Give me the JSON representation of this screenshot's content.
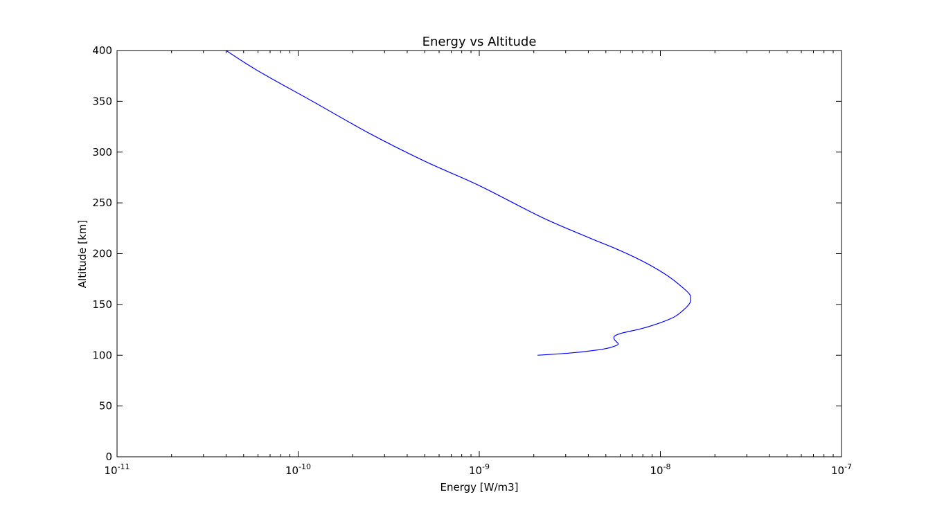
{
  "chart_data": {
    "type": "line",
    "title": "Energy vs Altitude",
    "xlabel": "Energy [W/m3]",
    "ylabel": "Altitude [km]",
    "x_scale": "log",
    "xlim": [
      1e-11,
      1e-07
    ],
    "ylim": [
      0,
      400
    ],
    "x_ticks": [
      {
        "value": 1e-11,
        "base": "10",
        "exponent": "-11"
      },
      {
        "value": 1e-10,
        "base": "10",
        "exponent": "-10"
      },
      {
        "value": 1e-09,
        "base": "10",
        "exponent": "-9"
      },
      {
        "value": 1e-08,
        "base": "10",
        "exponent": "-8"
      },
      {
        "value": 1e-07,
        "base": "10",
        "exponent": "-7"
      }
    ],
    "y_ticks": [
      {
        "value": 0,
        "label": "0"
      },
      {
        "value": 50,
        "label": "50"
      },
      {
        "value": 100,
        "label": "100"
      },
      {
        "value": 150,
        "label": "150"
      },
      {
        "value": 200,
        "label": "200"
      },
      {
        "value": 250,
        "label": "250"
      },
      {
        "value": 300,
        "label": "300"
      },
      {
        "value": 350,
        "label": "350"
      },
      {
        "value": 400,
        "label": "400"
      }
    ],
    "grid": false,
    "series": [
      {
        "color": "#0000ff",
        "points": [
          {
            "x": 2.1e-09,
            "y": 100
          },
          {
            "x": 3.1e-09,
            "y": 102
          },
          {
            "x": 4e-09,
            "y": 104
          },
          {
            "x": 5e-09,
            "y": 106.5
          },
          {
            "x": 5.6e-09,
            "y": 109
          },
          {
            "x": 5.85e-09,
            "y": 111
          },
          {
            "x": 5.7e-09,
            "y": 113.5
          },
          {
            "x": 5.55e-09,
            "y": 116
          },
          {
            "x": 5.6e-09,
            "y": 119
          },
          {
            "x": 6.2e-09,
            "y": 122
          },
          {
            "x": 7.8e-09,
            "y": 126
          },
          {
            "x": 1e-08,
            "y": 132
          },
          {
            "x": 1.2e-08,
            "y": 138
          },
          {
            "x": 1.35e-08,
            "y": 145
          },
          {
            "x": 1.45e-08,
            "y": 151
          },
          {
            "x": 1.47e-08,
            "y": 155
          },
          {
            "x": 1.45e-08,
            "y": 160
          },
          {
            "x": 1.32e-08,
            "y": 167
          },
          {
            "x": 1.1e-08,
            "y": 178
          },
          {
            "x": 8.5e-09,
            "y": 190
          },
          {
            "x": 6e-09,
            "y": 203
          },
          {
            "x": 4e-09,
            "y": 216
          },
          {
            "x": 2.2e-09,
            "y": 236
          },
          {
            "x": 1e-09,
            "y": 267
          },
          {
            "x": 5e-10,
            "y": 291
          },
          {
            "x": 2.5e-10,
            "y": 318
          },
          {
            "x": 1.2e-10,
            "y": 350
          },
          {
            "x": 6e-11,
            "y": 380
          },
          {
            "x": 4e-11,
            "y": 400
          }
        ]
      }
    ]
  }
}
